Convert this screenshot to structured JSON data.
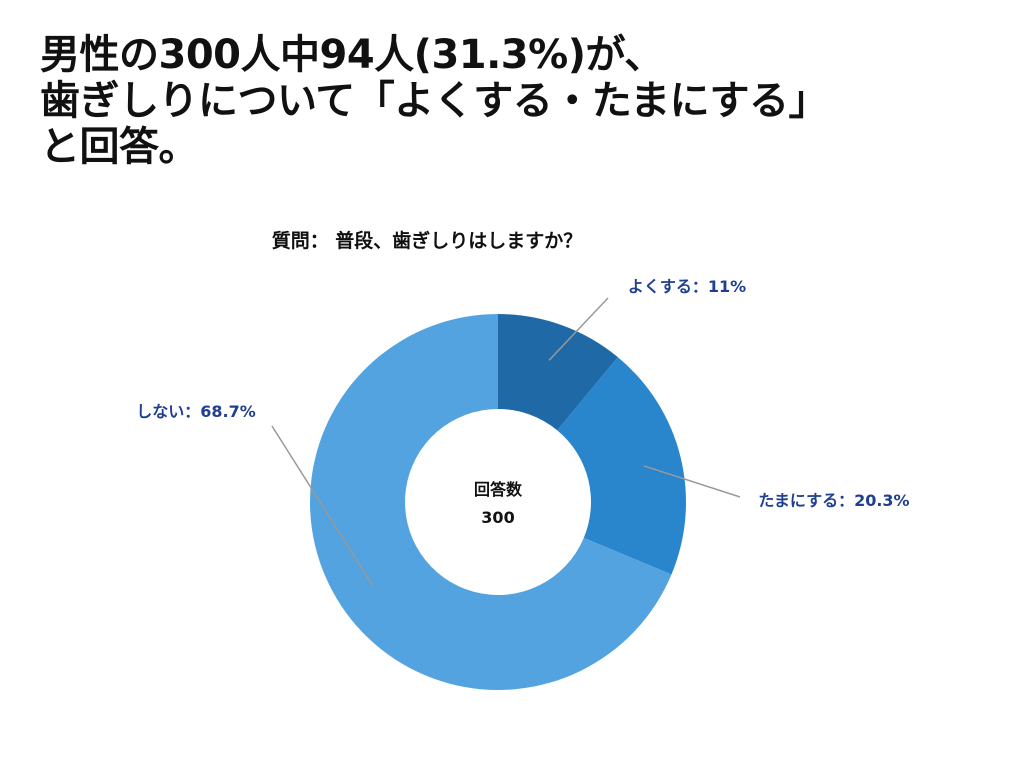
{
  "headline": {
    "line1": "男性の300人中94人(31.3%)が、",
    "line2": "歯ぎしりについて「よくする・たまにする」",
    "line3": "と回答。"
  },
  "chart_data": {
    "type": "pie",
    "title": "質問： 普段、歯ぎしりはしますか？",
    "center_label": "回答数",
    "center_value": "300",
    "slices": [
      {
        "name": "よくする",
        "value": 11.0,
        "label": "よくする：11%",
        "color": "#1f6aa6"
      },
      {
        "name": "たまにする",
        "value": 20.3,
        "label": "たまにする：20.3%",
        "color": "#2a86cc"
      },
      {
        "name": "しない",
        "value": 68.7,
        "label": "しない：68.7%",
        "color": "#52a3df"
      }
    ],
    "start": "top",
    "direction": "clockwise",
    "style": "donut"
  },
  "colors": {
    "label_text": "#1f3f8f",
    "leader_line": "#999999"
  }
}
